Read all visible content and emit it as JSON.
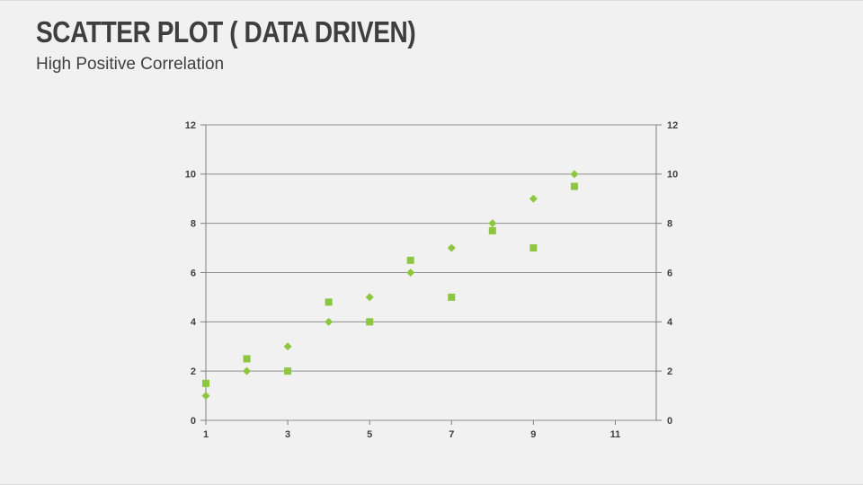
{
  "slide": {
    "title": "SCATTER PLOT ( DATA DRIVEN)",
    "subtitle": "High Positive Correlation"
  },
  "colors": {
    "background": "#f1f1f2",
    "title_text": "#3e3e3e",
    "subtitle_text": "#404040",
    "gridline": "#8e8e8e",
    "axis_line": "#7f7f7f",
    "tick_label": "#404040",
    "marker_green": "#8dc63f"
  },
  "chart_data": {
    "type": "scatter",
    "title": "",
    "xlabel": "",
    "ylabel": "",
    "xlim": [
      1,
      12
    ],
    "ylim": [
      0,
      12
    ],
    "xticks": [
      1,
      3,
      5,
      7,
      9,
      11
    ],
    "yticks": [
      0,
      2,
      4,
      6,
      8,
      10,
      12
    ],
    "y_labels_both_sides": true,
    "grid": "horizontal-only",
    "legend_position": "none",
    "series": [
      {
        "name": "diamond-series",
        "marker": "diamond",
        "color": "#8dc63f",
        "points": [
          [
            1,
            1
          ],
          [
            2,
            2
          ],
          [
            3,
            3
          ],
          [
            4,
            4
          ],
          [
            5,
            5
          ],
          [
            6,
            6
          ],
          [
            7,
            7
          ],
          [
            8,
            8
          ],
          [
            9,
            9
          ],
          [
            10,
            10
          ]
        ]
      },
      {
        "name": "square-series",
        "marker": "square",
        "color": "#8dc63f",
        "points": [
          [
            1,
            1.5
          ],
          [
            2,
            2.5
          ],
          [
            3,
            2
          ],
          [
            4,
            4.8
          ],
          [
            5,
            4
          ],
          [
            6,
            6.5
          ],
          [
            7,
            5
          ],
          [
            8,
            7.7
          ],
          [
            9,
            7
          ],
          [
            10,
            9.5
          ]
        ]
      }
    ]
  }
}
